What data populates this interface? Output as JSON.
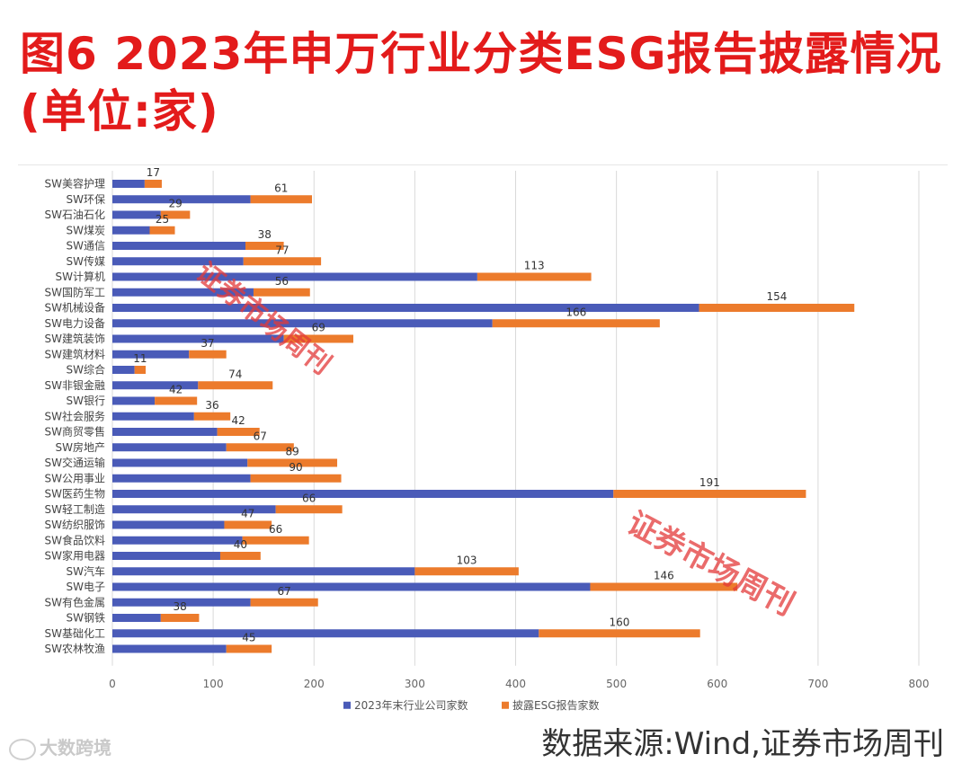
{
  "page": {
    "title": "图6  2023年申万行业分类ESG报告披露情况(单位:家)",
    "source": "数据来源:Wind,证券市场周刊",
    "brand": "大数跨境",
    "stamp_text": "证券市场周刊"
  },
  "colors": {
    "title": "#e31b1b",
    "series1": "#4a5bb8",
    "series2": "#ec7b2c"
  },
  "chart_data": {
    "type": "bar",
    "orientation": "horizontal",
    "stacked": true,
    "categories": [
      "SW美容护理",
      "SW环保",
      "SW石油石化",
      "SW煤炭",
      "SW通信",
      "SW传媒",
      "SW计算机",
      "SW国防军工",
      "SW机械设备",
      "SW电力设备",
      "SW建筑装饰",
      "SW建筑材料",
      "SW综合",
      "SW非银金融",
      "SW银行",
      "SW社会服务",
      "SW商贸零售",
      "SW房地产",
      "SW交通运输",
      "SW公用事业",
      "SW医药生物",
      "SW轻工制造",
      "SW纺织服饰",
      "SW食品饮料",
      "SW家用电器",
      "SW汽车",
      "SW电子",
      "SW有色金属",
      "SW钢铁",
      "SW基础化工",
      "SW农林牧渔"
    ],
    "series": [
      {
        "name": "2023年末行业公司家数",
        "values": [
          32,
          137,
          48,
          37,
          132,
          130,
          362,
          140,
          582,
          377,
          170,
          76,
          22,
          85,
          42,
          81,
          104,
          113,
          134,
          137,
          497,
          162,
          111,
          129,
          107,
          300,
          474,
          137,
          48,
          423,
          113
        ]
      },
      {
        "name": "披露ESG报告家数",
        "values": [
          17,
          61,
          29,
          25,
          38,
          77,
          113,
          56,
          154,
          166,
          69,
          37,
          11,
          74,
          42,
          36,
          42,
          67,
          89,
          90,
          191,
          66,
          47,
          66,
          40,
          103,
          146,
          67,
          38,
          160,
          45
        ]
      }
    ],
    "xlim": [
      0,
      800
    ],
    "xticks": [
      0,
      100,
      200,
      300,
      400,
      500,
      600,
      700,
      800
    ],
    "grid": true,
    "legend": "bottom"
  }
}
